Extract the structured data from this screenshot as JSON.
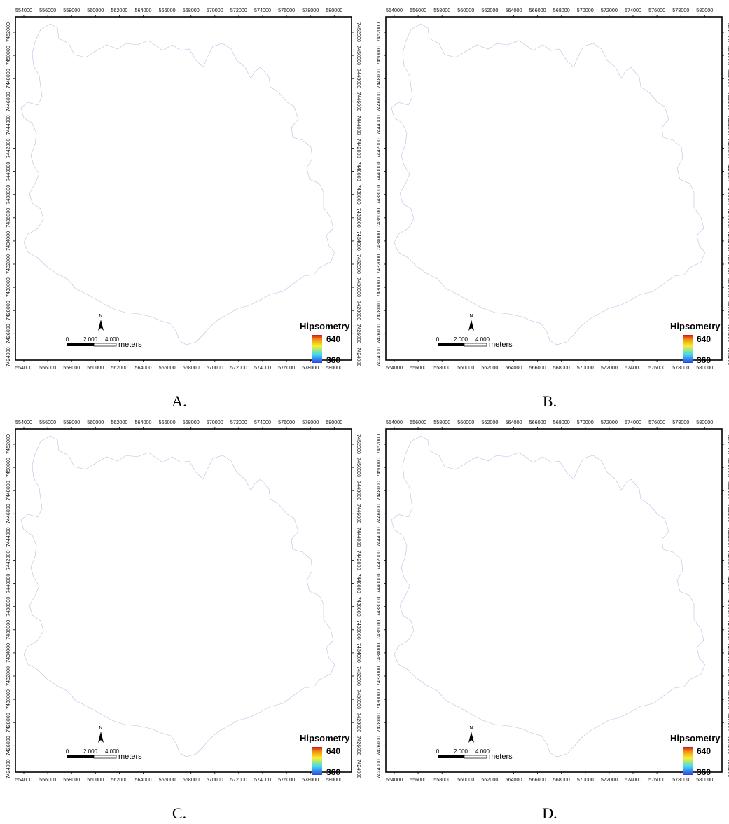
{
  "x_ticks": [
    "554000",
    "556000",
    "558000",
    "560000",
    "562000",
    "564000",
    "566000",
    "568000",
    "570000",
    "572000",
    "574000",
    "576000",
    "578000",
    "580000"
  ],
  "y_ticks": [
    "7452000",
    "7450000",
    "7448000",
    "7446000",
    "7444000",
    "7442000",
    "7440000",
    "7438000",
    "7436000",
    "7434000",
    "7432000",
    "7430000",
    "7428000",
    "7426000",
    "7424000"
  ],
  "legend": {
    "title": "Hipsometry",
    "max": "640",
    "min": "360"
  },
  "scale_bar": {
    "labels": [
      "0",
      "2.000",
      "4.000"
    ],
    "unit": "meters"
  },
  "north_label": "N",
  "colors": {
    "low": "#2f40e8",
    "mid_low": "#40d8f0",
    "mid": "#f2f030",
    "mid_high": "#f59a10",
    "high": "#d01818"
  },
  "panels": [
    {
      "label": "A.",
      "style": "detailed"
    },
    {
      "label": "B.",
      "style": "detailed-light"
    },
    {
      "label": "C.",
      "style": "detailed-sharp"
    },
    {
      "label": "D.",
      "style": "smooth"
    }
  ]
}
